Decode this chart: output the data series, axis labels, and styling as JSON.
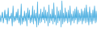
{
  "line_color": "#4aaee0",
  "fill_color": "#4aaee0",
  "background_color": "#ffffff",
  "alpha": 1.0,
  "values": [
    3,
    -4,
    2,
    6,
    -5,
    1,
    8,
    -2,
    4,
    -6,
    10,
    -3,
    2,
    -1,
    5,
    -8,
    12,
    -4,
    2,
    -3,
    6,
    -2,
    9,
    -5,
    3,
    -7,
    14,
    -6,
    2,
    -4,
    7,
    -3,
    5,
    -8,
    10,
    -2,
    8,
    -5,
    3,
    -4,
    12,
    -6,
    8,
    -3,
    5,
    -9,
    16,
    -7,
    4,
    -5,
    9,
    -4,
    6,
    -2,
    11,
    -5,
    8,
    -3,
    6,
    -8,
    13,
    -5,
    4,
    -3,
    9,
    -6,
    15,
    -4,
    3,
    -7,
    11,
    -5,
    7,
    -3,
    8,
    -9,
    17,
    -6,
    5,
    -4,
    10,
    -3,
    6,
    -5,
    8,
    -4,
    12,
    -7,
    4,
    -3,
    7,
    -5,
    9,
    -2,
    11,
    -6,
    8,
    -4,
    5,
    -3,
    9,
    -6,
    7,
    -3,
    10,
    -5,
    13,
    -4,
    6,
    -7,
    11,
    -4,
    5,
    -6,
    8,
    -3,
    12,
    -5,
    7,
    -4
  ]
}
